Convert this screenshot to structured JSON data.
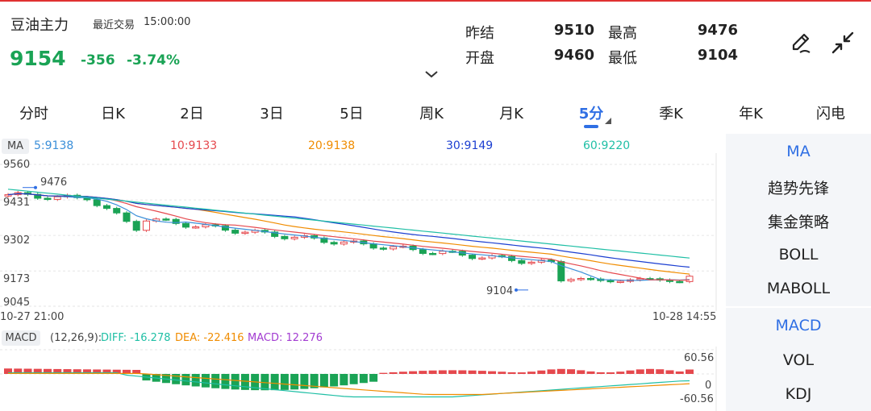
{
  "header": {
    "name": "豆油主力",
    "recent_label": "最近交易",
    "time": "15:00:00",
    "price": "9154",
    "change": "-356",
    "change_pct": "-3.74%",
    "stats": {
      "prev_settle_label": "昨结",
      "prev_settle": "9510",
      "high_label": "最高",
      "high": "9476",
      "open_label": "开盘",
      "open": "9460",
      "low_label": "最低",
      "low": "9104"
    },
    "icons": [
      "draw-pen-icon",
      "collapse-arrows-icon",
      "chevron-down-icon"
    ]
  },
  "tabs": [
    "分时",
    "日K",
    "2日",
    "3日",
    "5日",
    "周K",
    "月K",
    "5分",
    "季K",
    "年K",
    "闪电"
  ],
  "active_tab": "5分",
  "ma_legend": {
    "tag": "MA",
    "items": [
      {
        "label": "5:9138",
        "color": "#3b8fd9"
      },
      {
        "label": "10:9133",
        "color": "#e5484d"
      },
      {
        "label": "20:9138",
        "color": "#f08c00"
      },
      {
        "label": "30:9149",
        "color": "#1c3fd1"
      },
      {
        "label": "60:9220",
        "color": "#1fbfa5"
      }
    ]
  },
  "right_panel": {
    "top": [
      "MA",
      "趋势先锋",
      "集金策略",
      "BOLL",
      "MABOLL"
    ],
    "bottom": [
      "MACD",
      "VOL",
      "KDJ"
    ],
    "selected_color": "#2f6fe4"
  },
  "chart": {
    "y_labels": [
      "9560",
      "9431",
      "9302",
      "9173",
      "9045"
    ],
    "high_marker": "9476",
    "low_marker": "9104",
    "start_time": "10-27 21:00",
    "end_time": "10-28 14:55"
  },
  "macd": {
    "tag": "MACD",
    "params": "(12,26,9):",
    "diff": "DIFF: -16.278",
    "dea": "DEA: -22.416",
    "macd": "MACD: 12.276",
    "y_top": "60.56",
    "y_mid": "0",
    "y_bot": "-60.56"
  },
  "colors": {
    "up": "#e5484d",
    "down": "#1aa355",
    "accent": "#2f6fe4"
  },
  "chart_data": {
    "type": "candlestick",
    "y_axis_ticks": [
      9560,
      9431,
      9302,
      9173,
      9045
    ],
    "ylim": [
      9045,
      9560
    ],
    "x_range": [
      "10-27 21:00",
      "10-28 14:55"
    ],
    "high": 9476,
    "low": 9104,
    "ma_last": {
      "MA5": 9138,
      "MA10": 9133,
      "MA20": 9138,
      "MA30": 9149,
      "MA60": 9220
    },
    "macd_ylim": [
      -60.56,
      60.56
    ],
    "macd_last": {
      "DIFF": -16.278,
      "DEA": -22.416,
      "MACD": 12.276
    }
  }
}
